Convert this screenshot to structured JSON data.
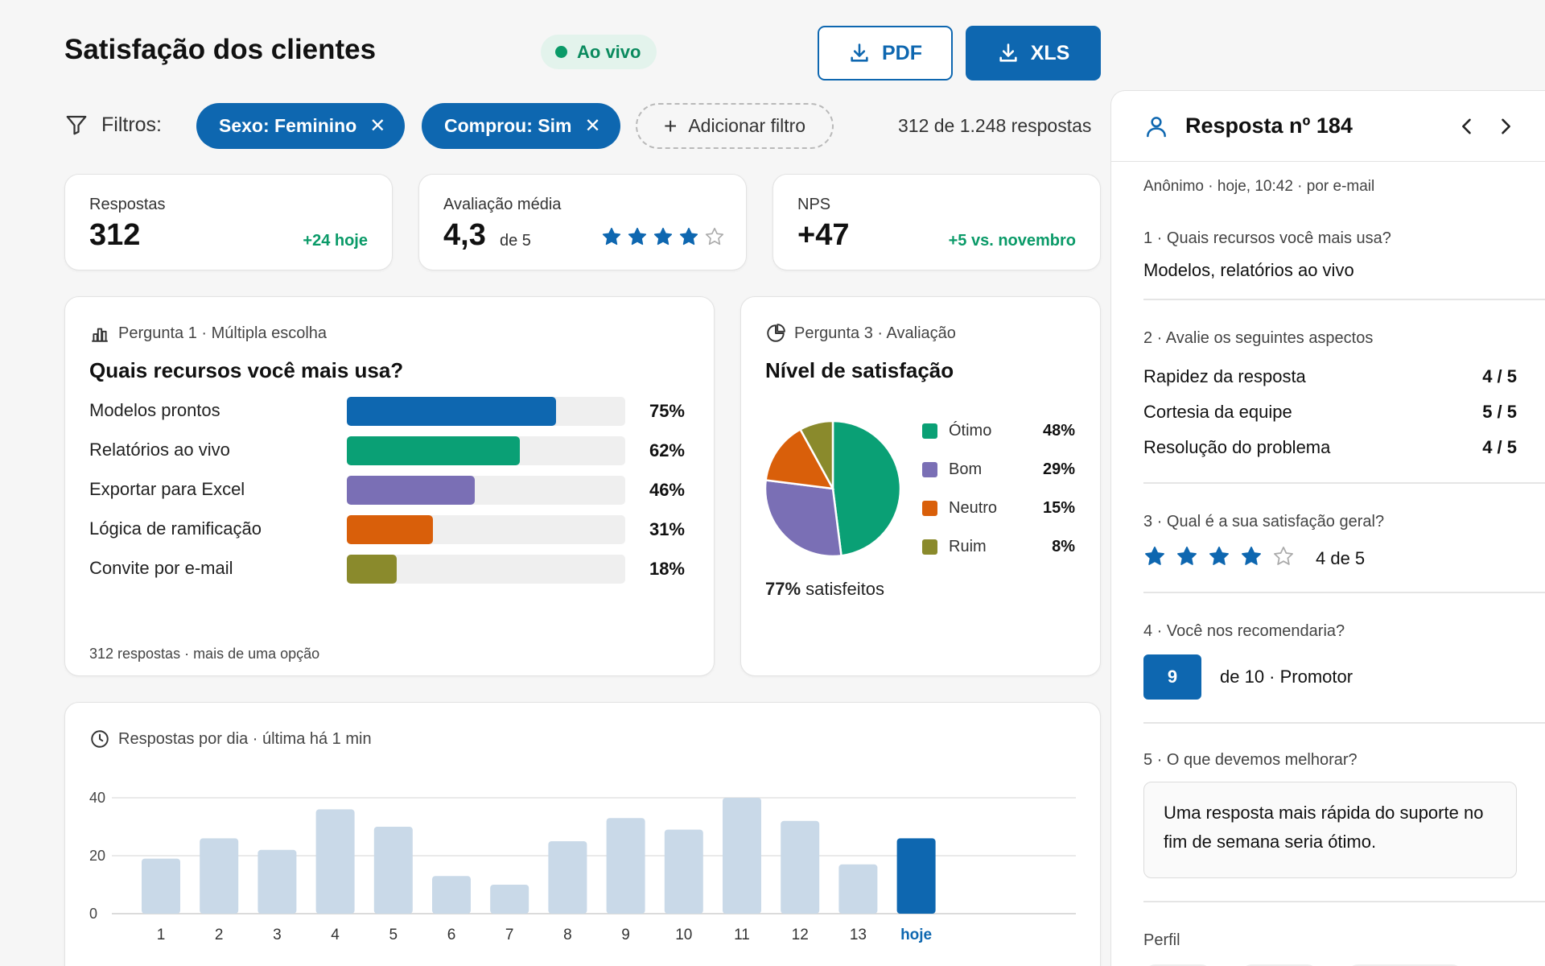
{
  "header": {
    "title": "Satisfação dos clientes",
    "live_label": "Ao vivo",
    "pdf_label": "PDF",
    "xls_label": "XLS"
  },
  "filters": {
    "label": "Filtros:",
    "chips": [
      {
        "label": "Sexo: Feminino"
      },
      {
        "label": "Comprou: Sim"
      }
    ],
    "add_label": "Adicionar filtro",
    "count": "312 de 1.248 respostas"
  },
  "kpis": {
    "responses": {
      "label": "Respostas",
      "value": "312",
      "delta": "+24 hoje"
    },
    "rating": {
      "label": "Avaliação média",
      "value": "4,3",
      "of": "de 5",
      "stars": 4,
      "max_stars": 5
    },
    "nps": {
      "label": "NPS",
      "value": "+47",
      "delta": "+5 vs. novembro"
    }
  },
  "question1": {
    "meta": "Pergunta 1 · Múltipla escolha",
    "title": "Quais recursos você mais usa?",
    "footer": "312 respostas · mais de uma opção"
  },
  "question3": {
    "meta": "Pergunta 3 · Avaliação",
    "title": "Nível de satisfação",
    "summary_pct": "77%",
    "summary_text": "satisfeitos"
  },
  "timeline": {
    "meta": "Respostas por dia · última há 1 min"
  },
  "chart_data": [
    {
      "type": "bar",
      "orientation": "horizontal",
      "categories": [
        "Modelos prontos",
        "Relatórios ao vivo",
        "Exportar para Excel",
        "Lógica de ramificação",
        "Convite por e-mail"
      ],
      "values": [
        75,
        62,
        46,
        31,
        18
      ],
      "labels": [
        "75%",
        "62%",
        "46%",
        "31%",
        "18%"
      ],
      "colors": [
        "#0e67b0",
        "#0aa075",
        "#7a6fb5",
        "#d95f0a",
        "#8a8a2c"
      ],
      "xlim": [
        0,
        100
      ]
    },
    {
      "type": "pie",
      "categories": [
        "Ótimo",
        "Bom",
        "Neutro",
        "Ruim"
      ],
      "values": [
        48,
        29,
        15,
        8
      ],
      "labels": [
        "48%",
        "29%",
        "15%",
        "8%"
      ],
      "colors": [
        "#0aa075",
        "#7a6fb5",
        "#d95f0a",
        "#8a8a2c"
      ],
      "legend": "right"
    },
    {
      "type": "bar",
      "categories": [
        "1",
        "2",
        "3",
        "4",
        "5",
        "6",
        "7",
        "8",
        "9",
        "10",
        "11",
        "12",
        "13",
        "hoje"
      ],
      "values": [
        19,
        26,
        22,
        36,
        30,
        13,
        10,
        25,
        33,
        29,
        40,
        32,
        17,
        26
      ],
      "ylim": [
        0,
        40
      ],
      "yticks": [
        "0",
        "20",
        "40"
      ],
      "grid": true,
      "colors": {
        "default": "#c9d9e8",
        "highlight": "#0e67b0"
      }
    }
  ],
  "panel": {
    "title": "Resposta nº 184",
    "meta": "Anônimo · hoje, 10:42 · por e-mail",
    "q1": {
      "question": "1 · Quais recursos você mais usa?",
      "answer": "Modelos, relatórios ao vivo"
    },
    "q2": {
      "question": "2 · Avalie os seguintes aspectos",
      "rows": [
        {
          "label": "Rapidez da resposta",
          "value": "4 / 5"
        },
        {
          "label": "Cortesia da equipe",
          "value": "5 / 5"
        },
        {
          "label": "Resolução do problema",
          "value": "4 / 5"
        }
      ]
    },
    "q3": {
      "question": "3 · Qual é a sua satisfação geral?",
      "stars": 4,
      "max_stars": 5,
      "text": "4 de 5"
    },
    "q4": {
      "question": "4 · Você nos recomendaria?",
      "score": "9",
      "text": "de 10 · Promotor"
    },
    "q5": {
      "question": "5 · O que devemos melhorar?",
      "answer": "Uma resposta mais rápida do suporte no fim de semana seria ótimo."
    },
    "profile_label": "Perfil"
  },
  "colors": {
    "accent": "#0e67b0",
    "positive": "#0a9a68",
    "star": "#0e67b0"
  }
}
